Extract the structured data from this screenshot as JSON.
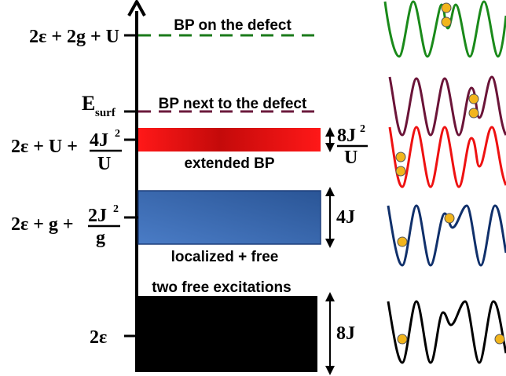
{
  "levels": {
    "bp_on_defect": {
      "energy_label": "2ε + 2g + U",
      "annotation": "BP on the defect",
      "color": "#1a7a1a"
    },
    "bp_next_to_defect": {
      "energy_main": "E",
      "energy_sub": "surf",
      "annotation": "BP next to the defect",
      "color": "#6b1a3c"
    },
    "extended_bp": {
      "energy_prefix": "2ε + U +",
      "frac_num": "4J",
      "frac_num_sup": "2",
      "frac_den": "U",
      "annotation": "extended BP",
      "width_num": "8J",
      "width_num_sup": "2",
      "width_den": "U",
      "color": "#ff1a1a"
    },
    "localized_free": {
      "energy_prefix": "2ε + g +",
      "frac_num": "2J",
      "frac_num_sup": "2",
      "frac_den": "g",
      "annotation": "localized + free",
      "width": "4J",
      "color": "#3f6fb5"
    },
    "two_free": {
      "energy_label": "2ε",
      "annotation": "two free excitations",
      "width": "8J",
      "color": "#000000"
    }
  },
  "potentials": [
    {
      "name": "green",
      "color": "#1a8a1a"
    },
    {
      "name": "maroon",
      "color": "#6b1438"
    },
    {
      "name": "red",
      "color": "#ee1111"
    },
    {
      "name": "navy",
      "color": "#10306b"
    },
    {
      "name": "black",
      "color": "#000000"
    }
  ],
  "particle_color": "#f2b51c"
}
